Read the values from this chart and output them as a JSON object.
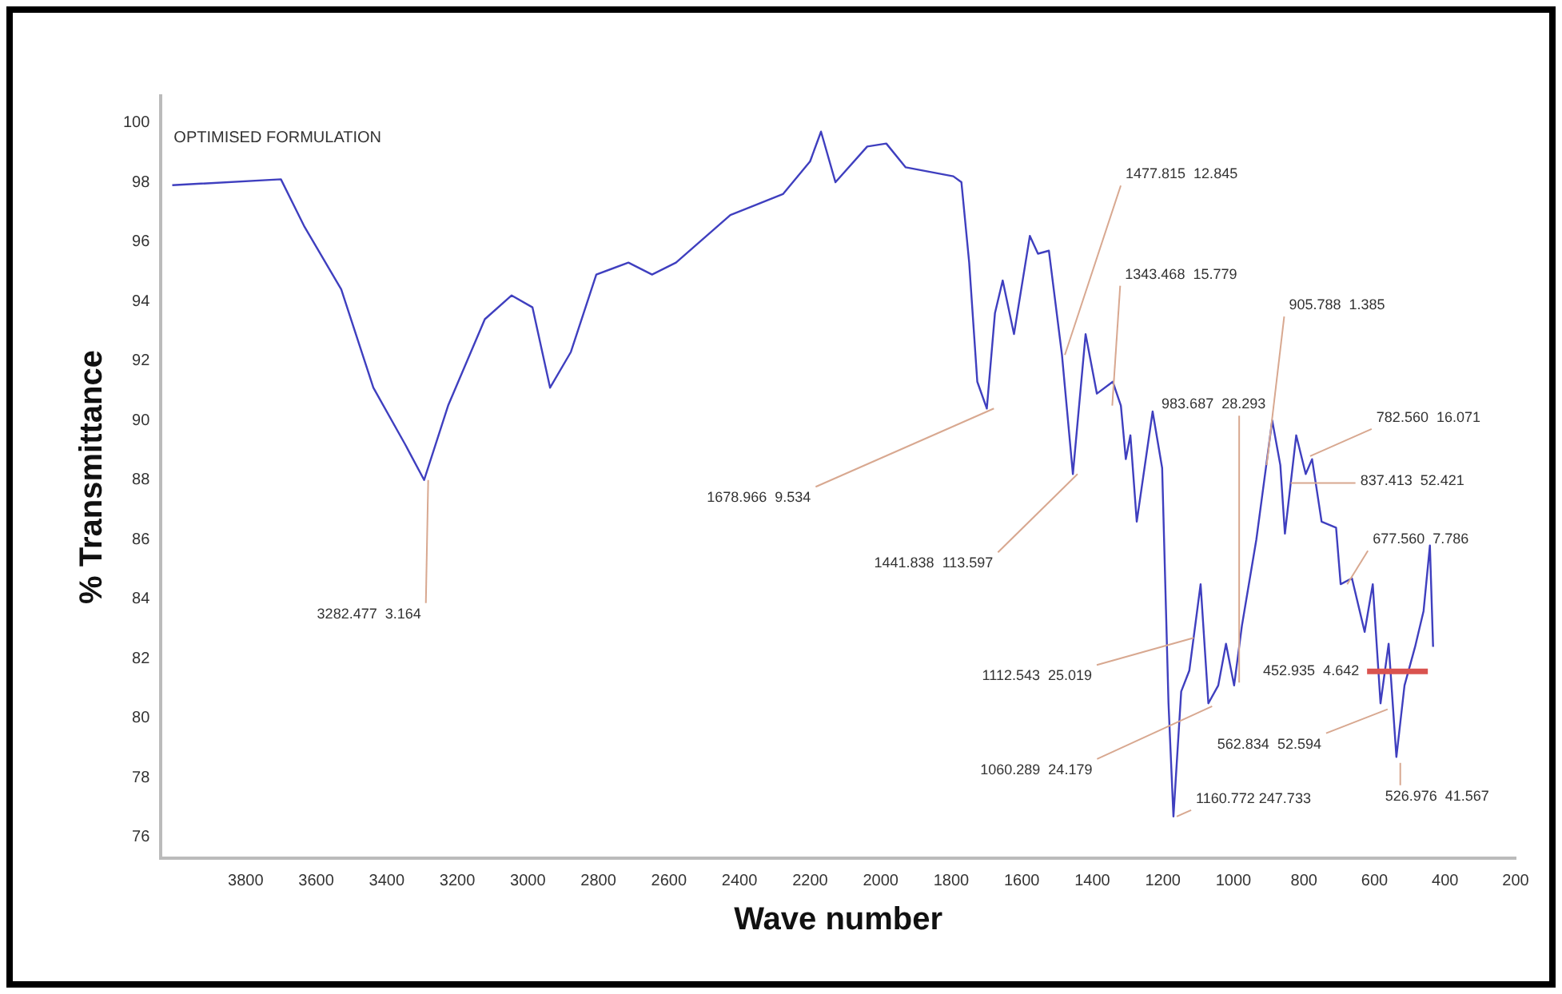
{
  "chart_data": {
    "type": "line",
    "title": "OPTIMISED FORMULATION",
    "xlabel": "Wave number",
    "ylabel": "% Transmittance",
    "xlim": [
      4040,
      200
    ],
    "ylim": [
      75.3,
      100.9
    ],
    "xticks": [
      3800,
      3600,
      3400,
      3200,
      3000,
      2800,
      2600,
      2400,
      2200,
      2000,
      1800,
      1600,
      1400,
      1200,
      1000,
      800,
      600,
      400,
      200
    ],
    "yticks": [
      76,
      78,
      80,
      82,
      84,
      86,
      88,
      90,
      92,
      94,
      96,
      98,
      100
    ],
    "grid": false,
    "legend": false,
    "marker": "none",
    "line_style": "solid",
    "series": [
      {
        "color": "#3f3fbf",
        "x": [
          4008,
          3700,
          3633,
          3529,
          3438,
          3348,
          3294,
          3226,
          3122,
          3046,
          2987,
          2937,
          2878,
          2806,
          2715,
          2648,
          2580,
          2426,
          2277,
          2200,
          2169,
          2128,
          2038,
          1984,
          1929,
          1794,
          1771,
          1749,
          1726,
          1699,
          1676,
          1654,
          1622,
          1577,
          1554,
          1523,
          1486,
          1455,
          1419,
          1387,
          1342,
          1319,
          1305,
          1292,
          1274,
          1229,
          1202,
          1184,
          1170,
          1148,
          1125,
          1093,
          1071,
          1043,
          1021,
          998,
          976,
          935,
          908,
          890,
          867,
          854,
          822,
          795,
          777,
          750,
          709,
          696,
          664,
          628,
          605,
          583,
          560,
          538,
          515,
          485,
          461,
          443,
          434
        ],
        "values": [
          97.9,
          98.1,
          96.5,
          94.4,
          91.1,
          89.2,
          88.0,
          90.5,
          93.4,
          94.2,
          93.8,
          91.1,
          92.3,
          94.9,
          95.3,
          94.9,
          95.3,
          96.9,
          97.6,
          98.7,
          99.7,
          98.0,
          99.2,
          99.3,
          98.5,
          98.2,
          98.0,
          95.3,
          91.3,
          90.4,
          93.6,
          94.7,
          92.9,
          96.2,
          95.6,
          95.7,
          92.2,
          88.2,
          92.9,
          90.9,
          91.3,
          90.5,
          88.7,
          89.5,
          86.6,
          90.3,
          88.4,
          80.5,
          76.7,
          80.9,
          81.6,
          84.5,
          80.5,
          81.1,
          82.5,
          81.1,
          83.1,
          86.0,
          88.4,
          90.0,
          88.5,
          86.2,
          89.5,
          88.2,
          88.7,
          86.6,
          86.4,
          84.5,
          84.7,
          82.9,
          84.5,
          80.5,
          82.5,
          78.7,
          81.1,
          82.4,
          83.6,
          85.8,
          82.4
        ]
      }
    ],
    "annotations": [
      {
        "text": "3282.477  3.164",
        "x": 3282.477,
        "y": 88.0
      },
      {
        "text": "1678.966  9.534",
        "x": 1678.966,
        "y": 90.4
      },
      {
        "text": "1477.815  12.845",
        "x": 1477.815,
        "y": 92.2
      },
      {
        "text": "1343.468  15.779",
        "x": 1343.468,
        "y": 90.5
      },
      {
        "text": "1441.838  113.597",
        "x": 1441.838,
        "y": 88.2
      },
      {
        "text": "983.687  28.293",
        "x": 983.687,
        "y": 81.2
      },
      {
        "text": "905.788  1.385",
        "x": 905.788,
        "y": 88.5
      },
      {
        "text": "782.560  16.071",
        "x": 782.56,
        "y": 88.8
      },
      {
        "text": "837.413  52.421",
        "x": 837.413,
        "y": 87.9
      },
      {
        "text": "677.560  7.786",
        "x": 677.56,
        "y": 84.5
      },
      "452.935  4.642",
      {
        "text": "1112.543  25.019",
        "x": 1112.543,
        "y": 82.7
      },
      {
        "text": "1060.289  24.179",
        "x": 1060.289,
        "y": 80.4
      },
      {
        "text": "562.834  52.594",
        "x": 562.834,
        "y": 80.3
      },
      {
        "text": "1160.772 247.733",
        "x": 1160.772,
        "y": 76.7
      },
      {
        "text": "526.976  41.567",
        "x": 526.976,
        "y": 78.5
      }
    ]
  }
}
